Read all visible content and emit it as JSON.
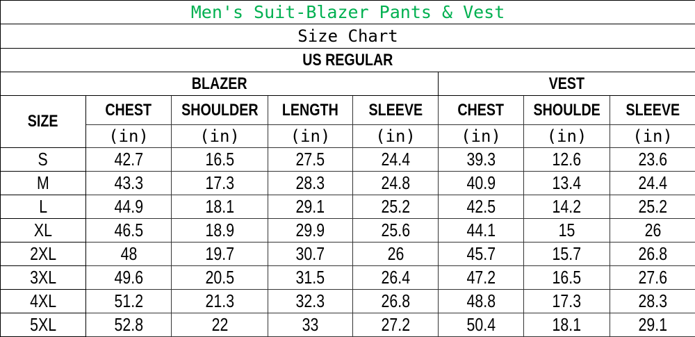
{
  "title": "Men's Suit-Blazer Pants & Vest",
  "subtitle": "Size Chart",
  "region": "US REGULAR",
  "colors": {
    "title": "#00b050",
    "text": "#000000",
    "border": "#000000"
  },
  "groups": {
    "blazer": "BLAZER",
    "vest": "VEST"
  },
  "size_header": "SIZE",
  "columns": [
    "CHEST",
    "SHOULDER",
    "LENGTH",
    "SLEEVE",
    "CHEST",
    "SHOULDE",
    "SLEEVE"
  ],
  "unit": "(in)",
  "rows": [
    {
      "size": "S",
      "values": [
        "42.7",
        "16.5",
        "27.5",
        "24.4",
        "39.3",
        "12.6",
        "23.6"
      ]
    },
    {
      "size": "M",
      "values": [
        "43.3",
        "17.3",
        "28.3",
        "24.8",
        "40.9",
        "13.4",
        "24.4"
      ]
    },
    {
      "size": "L",
      "values": [
        "44.9",
        "18.1",
        "29.1",
        "25.2",
        "42.5",
        "14.2",
        "25.2"
      ]
    },
    {
      "size": "XL",
      "values": [
        "46.5",
        "18.9",
        "29.9",
        "25.6",
        "44.1",
        "15",
        "26"
      ]
    },
    {
      "size": "2XL",
      "values": [
        "48",
        "19.7",
        "30.7",
        "26",
        "45.7",
        "15.7",
        "26.8"
      ]
    },
    {
      "size": "3XL",
      "values": [
        "49.6",
        "20.5",
        "31.5",
        "26.4",
        "47.2",
        "16.5",
        "27.6"
      ]
    },
    {
      "size": "4XL",
      "values": [
        "51.2",
        "21.3",
        "32.3",
        "26.8",
        "48.8",
        "17.3",
        "28.3"
      ]
    },
    {
      "size": "5XL",
      "values": [
        "52.8",
        "22",
        "33",
        "27.2",
        "50.4",
        "18.1",
        "29.1"
      ]
    }
  ]
}
